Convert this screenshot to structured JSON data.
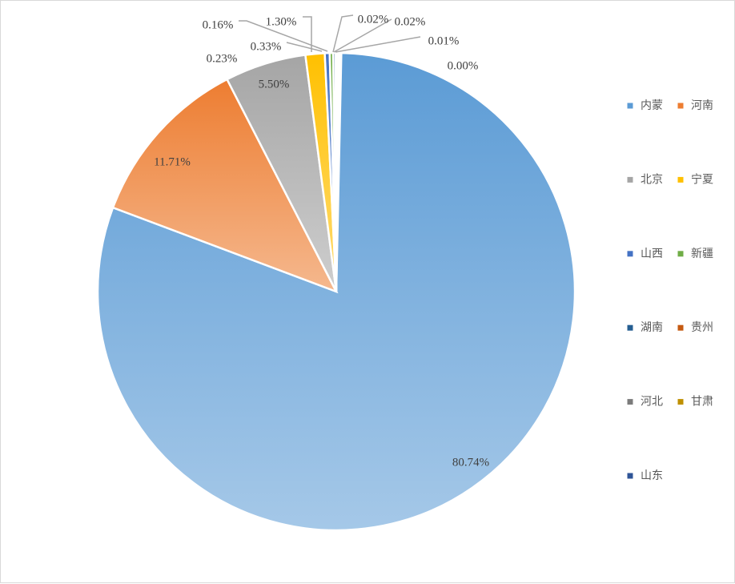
{
  "chart_data": {
    "type": "pie",
    "title": "",
    "start_angle_deg": 0,
    "direction": "clockwise",
    "legend_position": "right",
    "slices": [
      {
        "label": "内蒙",
        "value": 80.74,
        "display": "80.74%",
        "color": "#5b9bd5"
      },
      {
        "label": "河南",
        "value": 11.71,
        "display": "11.71%",
        "color": "#ed7d31"
      },
      {
        "label": "北京",
        "value": 5.5,
        "display": "5.50%",
        "color": "#a5a5a5"
      },
      {
        "label": "宁夏",
        "value": 1.3,
        "display": "1.30%",
        "color": "#ffc000"
      },
      {
        "label": "山西",
        "value": 0.33,
        "display": "0.33%",
        "color": "#4472c4"
      },
      {
        "label": "新疆",
        "value": 0.23,
        "display": "0.23%",
        "color": "#70ad47"
      },
      {
        "label": "湖南",
        "value": 0.16,
        "display": "0.16%",
        "color": "#255e91"
      },
      {
        "label": "贵州",
        "value": 0.02,
        "display": "0.02%",
        "color": "#c55a11"
      },
      {
        "label": "河北",
        "value": 0.02,
        "display": "0.02%",
        "color": "#7b7b7b"
      },
      {
        "label": "甘肃",
        "value": 0.01,
        "display": "0.01%",
        "color": "#bf9000"
      },
      {
        "label": "山东",
        "value": 0.0,
        "display": "0.00%",
        "color": "#2f5597"
      }
    ]
  }
}
